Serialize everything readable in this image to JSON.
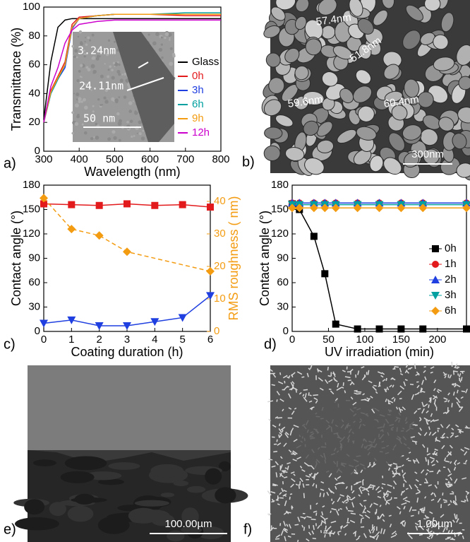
{
  "chart_data": [
    {
      "panel_label": "a)",
      "type": "line",
      "xlabel": "Wavelength (nm)",
      "ylabel": "Transmittance (%)",
      "x": [
        300,
        320,
        340,
        360,
        380,
        400,
        450,
        500,
        600,
        700,
        800
      ],
      "xlim": [
        300,
        800
      ],
      "ylim": [
        0,
        100
      ],
      "xticks": [
        300,
        400,
        500,
        600,
        700,
        800
      ],
      "yticks": [
        0,
        20,
        40,
        60,
        80,
        100
      ],
      "legend": "right",
      "annotations": [
        "3.24nm",
        "24.11nm",
        "50 nm"
      ],
      "series": [
        {
          "name": "Glass",
          "color": "#000000",
          "marker": "none",
          "values": [
            22,
            62,
            86,
            91,
            92,
            92,
            92,
            92,
            92,
            92,
            92
          ]
        },
        {
          "name": "0h",
          "color": "#e31a1c",
          "marker": "none",
          "values": [
            20,
            42,
            52,
            62,
            88,
            93,
            94,
            95,
            95,
            94,
            94
          ]
        },
        {
          "name": "3h",
          "color": "#1f3fe0",
          "marker": "none",
          "values": [
            20,
            40,
            50,
            58,
            85,
            92,
            94,
            95,
            95,
            95,
            95
          ]
        },
        {
          "name": "6h",
          "color": "#00a0a0",
          "marker": "none",
          "values": [
            20,
            40,
            50,
            60,
            86,
            92,
            94,
            95,
            95,
            96,
            96
          ]
        },
        {
          "name": "9h",
          "color": "#f39c12",
          "marker": "none",
          "values": [
            20,
            41,
            51,
            60,
            86,
            92,
            94,
            95,
            95,
            95,
            95
          ]
        },
        {
          "name": "12h",
          "color": "#cc00cc",
          "marker": "none",
          "values": [
            20,
            45,
            58,
            75,
            84,
            88,
            90,
            91,
            91,
            91,
            91
          ]
        }
      ]
    },
    {
      "panel_label": "c)",
      "type": "line",
      "xlabel": "Coating duration (h)",
      "ylabel": "Contact angle (°)",
      "y2label": "RMS roughness ( nm)",
      "y2color": "#f39c12",
      "x": [
        0,
        1,
        2,
        3,
        4,
        5,
        6
      ],
      "xlim": [
        0,
        6
      ],
      "xticks": [
        0,
        1,
        2,
        3,
        4,
        5,
        6
      ],
      "ylim": [
        0,
        180
      ],
      "yticks": [
        0,
        30,
        60,
        90,
        120,
        150,
        180
      ],
      "y2lim": [
        0,
        45
      ],
      "y2ticks": [
        0,
        10,
        20,
        30,
        40
      ],
      "series": [
        {
          "color": "#e31a1c",
          "marker": "square",
          "values": [
            157,
            156,
            155,
            157,
            155,
            156,
            153
          ]
        },
        {
          "color": "#1f3fe0",
          "marker": "triangle-down",
          "values": [
            10,
            14,
            7,
            7,
            12,
            17,
            44
          ]
        },
        {
          "color": "#f39c12",
          "marker": "diamond",
          "axis": "y2",
          "dash": true,
          "x": [
            0,
            1,
            2,
            3,
            6
          ],
          "values": [
            41,
            31.5,
            29.5,
            24.5,
            18.5
          ]
        }
      ]
    },
    {
      "panel_label": "d)",
      "type": "line",
      "xlabel": "UV irradiation (min)",
      "ylabel": "Contact angle (°)",
      "x": [
        0,
        10,
        30,
        45,
        60,
        90,
        120,
        150,
        180,
        240
      ],
      "xlim": [
        0,
        240
      ],
      "xticks": [
        0,
        50,
        100,
        150,
        200
      ],
      "ylim": [
        0,
        180
      ],
      "yticks": [
        0,
        30,
        60,
        90,
        120,
        150,
        180
      ],
      "legend": "right",
      "series": [
        {
          "name": "0h",
          "color": "#000000",
          "marker": "square",
          "values": [
            157,
            150,
            117,
            71,
            9,
            3,
            3,
            3,
            3,
            3
          ]
        },
        {
          "name": "1h",
          "color": "#e31a1c",
          "marker": "circle",
          "values": [
            158,
            158,
            158,
            158,
            158,
            158,
            158,
            158,
            158,
            158
          ]
        },
        {
          "name": "2h",
          "color": "#1f3fe0",
          "marker": "triangle",
          "values": [
            158,
            158,
            158,
            158,
            158,
            158,
            158,
            158,
            158,
            158
          ]
        },
        {
          "name": "3h",
          "color": "#00a0a0",
          "marker": "triangle-down",
          "values": [
            156,
            156,
            156,
            156,
            156,
            156,
            156,
            156,
            156,
            156
          ]
        },
        {
          "name": "6h",
          "color": "#f39c12",
          "marker": "diamond",
          "values": [
            152,
            152,
            152,
            152,
            152,
            152,
            152,
            152,
            152,
            152
          ]
        }
      ]
    }
  ],
  "images": [
    {
      "panel_label": "b)",
      "labels": [
        "57.4nm",
        "51.8nm",
        "59.6nm",
        "60.4nm"
      ],
      "scale_bar": "300nm"
    },
    {
      "panel_label": "e)",
      "scale_bar": "100.00µm"
    },
    {
      "panel_label": "f)",
      "scale_bar": "1.00µm"
    }
  ]
}
